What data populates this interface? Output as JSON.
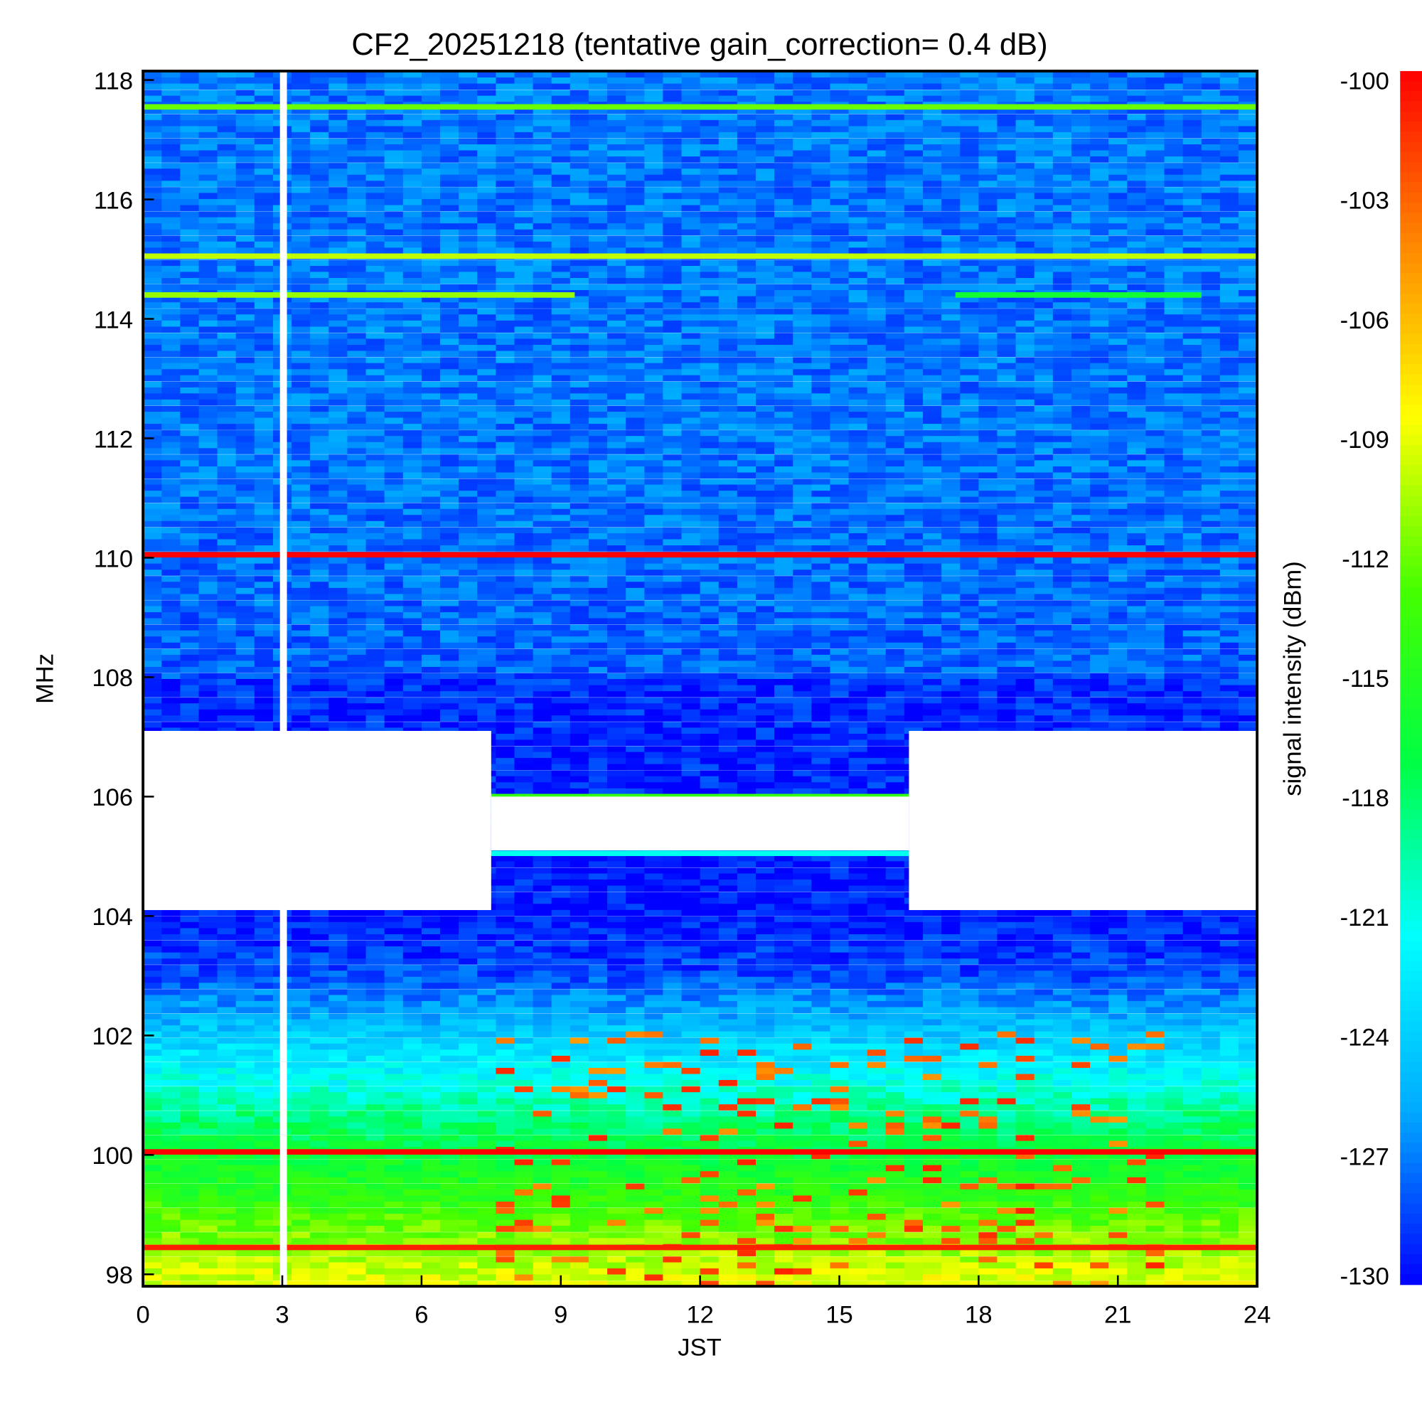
{
  "chart_data": {
    "type": "heatmap",
    "title": "CF2_20251218 (tentative gain_correction=  0.4 dB)",
    "xlabel": "JST",
    "ylabel": "MHz",
    "colorbar_label": "signal intensity (dBm)",
    "xlim": [
      0,
      24
    ],
    "ylim": [
      97.8,
      118.15
    ],
    "x_ticks": [
      "0",
      "3",
      "6",
      "9",
      "12",
      "15",
      "18",
      "21",
      "24"
    ],
    "y_ticks": [
      "98",
      "100",
      "102",
      "104",
      "106",
      "108",
      "110",
      "112",
      "114",
      "116",
      "118"
    ],
    "x_tick_values": [
      0,
      3,
      6,
      9,
      12,
      15,
      18,
      21,
      24
    ],
    "y_tick_values": [
      98,
      100,
      102,
      104,
      106,
      108,
      110,
      112,
      114,
      116,
      118
    ],
    "colorbar_range": [
      -130,
      -100
    ],
    "colorbar_ticks": [
      "-100",
      "-103",
      "-106",
      "-109",
      "-112",
      "-115",
      "-118",
      "-121",
      "-124",
      "-127",
      "-130"
    ],
    "colorbar_tick_values": [
      -100,
      -103,
      -106,
      -109,
      -112,
      -115,
      -118,
      -121,
      -124,
      -127,
      -130
    ],
    "background_profile": [
      {
        "freq": 118.1,
        "dbm": -127
      },
      {
        "freq": 112,
        "dbm": -127
      },
      {
        "freq": 108.1,
        "dbm": -127.5
      },
      {
        "freq": 107.9,
        "dbm": -129
      },
      {
        "freq": 104,
        "dbm": -129.5
      },
      {
        "freq": 103,
        "dbm": -128
      },
      {
        "freq": 102,
        "dbm": -124
      },
      {
        "freq": 101.2,
        "dbm": -121
      },
      {
        "freq": 100.5,
        "dbm": -118
      },
      {
        "freq": 99.5,
        "dbm": -115
      },
      {
        "freq": 98.8,
        "dbm": -112
      },
      {
        "freq": 97.8,
        "dbm": -109
      }
    ],
    "carriers": [
      {
        "freq": 117.55,
        "dbm": -112,
        "t_start": 0,
        "t_end": 24
      },
      {
        "freq": 115.05,
        "dbm": -110,
        "t_start": 0,
        "t_end": 24
      },
      {
        "freq": 114.4,
        "dbm": -111,
        "t_start": 0,
        "t_end": 9.3
      },
      {
        "freq": 114.4,
        "dbm": -116,
        "t_start": 17.5,
        "t_end": 22.8
      },
      {
        "freq": 110.05,
        "dbm": -100,
        "t_start": 0,
        "t_end": 24
      },
      {
        "freq": 105.05,
        "dbm": -121,
        "t_start": 0,
        "t_end": 24
      },
      {
        "freq": 106.0,
        "dbm": -114,
        "t_start": 0,
        "t_end": 24
      },
      {
        "freq": 100.05,
        "dbm": -100,
        "t_start": 0,
        "t_end": 24
      },
      {
        "freq": 98.45,
        "dbm": -101,
        "t_start": 0,
        "t_end": 24
      }
    ],
    "no_data_regions": [
      {
        "t_start": 2.95,
        "t_end": 3.1,
        "f_low": 97.8,
        "f_high": 118.15
      },
      {
        "t_start": 0,
        "t_end": 7.5,
        "f_low": 104.1,
        "f_high": 107.1
      },
      {
        "t_start": 16.5,
        "t_end": 24,
        "f_low": 104.1,
        "f_high": 107.1
      },
      {
        "t_start": 7.5,
        "t_end": 16.5,
        "f_low": 105.1,
        "f_high": 106.0
      }
    ],
    "colormap": [
      "#0000ff",
      "#00aaff",
      "#00ffff",
      "#00ff44",
      "#44ff00",
      "#ffff00",
      "#ff8800",
      "#ff0000"
    ]
  }
}
